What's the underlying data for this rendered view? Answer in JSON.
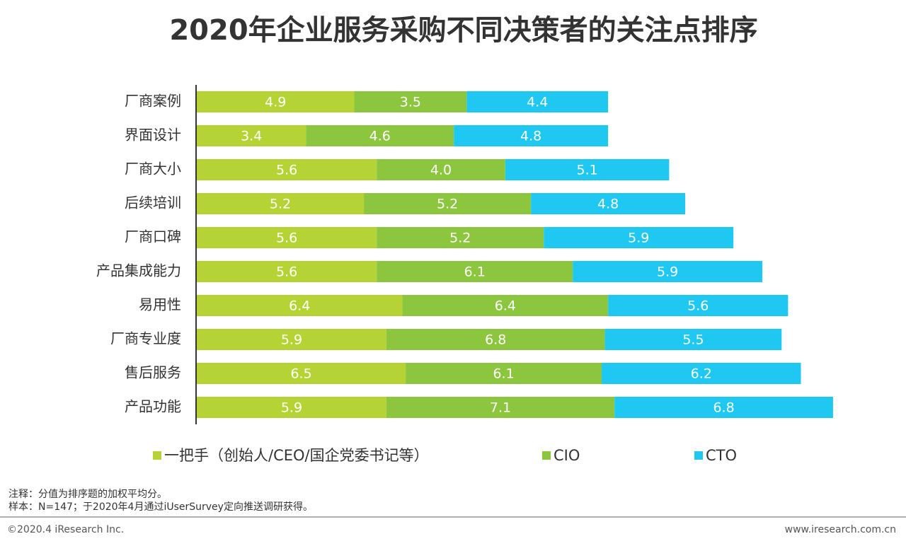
{
  "chart_data": {
    "type": "bar",
    "orientation": "horizontal",
    "stacked": true,
    "title": "2020年企业服务采购不同决策者的关注点排序",
    "categories": [
      "厂商案例",
      "界面设计",
      "厂商大小",
      "后续培训",
      "厂商口碑",
      "产品集成能力",
      "易用性",
      "厂商专业度",
      "售后服务",
      "产品功能"
    ],
    "series": [
      {
        "name": "一把手（创始人/CEO/国企党委书记等）",
        "color": "#b5d334",
        "values": [
          4.9,
          3.4,
          5.6,
          5.2,
          5.6,
          5.6,
          6.4,
          5.9,
          6.5,
          5.9
        ],
        "value_labels": [
          "4.9",
          "3.4",
          "5.6",
          "5.2",
          "5.6",
          "5.6",
          "6.4",
          "5.9",
          "6.5",
          "5.9"
        ]
      },
      {
        "name": "CIO",
        "color": "#8cc63f",
        "values": [
          3.5,
          4.6,
          4.0,
          5.2,
          5.2,
          6.1,
          6.4,
          6.8,
          6.1,
          7.1
        ],
        "value_labels": [
          "3.5",
          "4.6",
          "4.0",
          "5.2",
          "5.2",
          "6.1",
          "6.4",
          "6.8",
          "6.1",
          "7.1"
        ]
      },
      {
        "name": "CTO",
        "color": "#1fc8f0",
        "values": [
          4.4,
          4.8,
          5.1,
          4.8,
          5.9,
          5.9,
          5.6,
          5.5,
          6.2,
          6.8
        ],
        "value_labels": [
          "4.4",
          "4.8",
          "5.1",
          "4.8",
          "5.9",
          "5.9",
          "5.6",
          "5.5",
          "6.2",
          "6.8"
        ]
      }
    ],
    "legend": "bottom"
  },
  "notes": [
    "注释：分值为排序题的加权平均分。",
    "样本：N=147；于2020年4月通过iUserSurvey定向推送调研获得。"
  ],
  "footer": {
    "left": "©2020.4 iResearch Inc.",
    "right": "www.iresearch.com.cn"
  }
}
